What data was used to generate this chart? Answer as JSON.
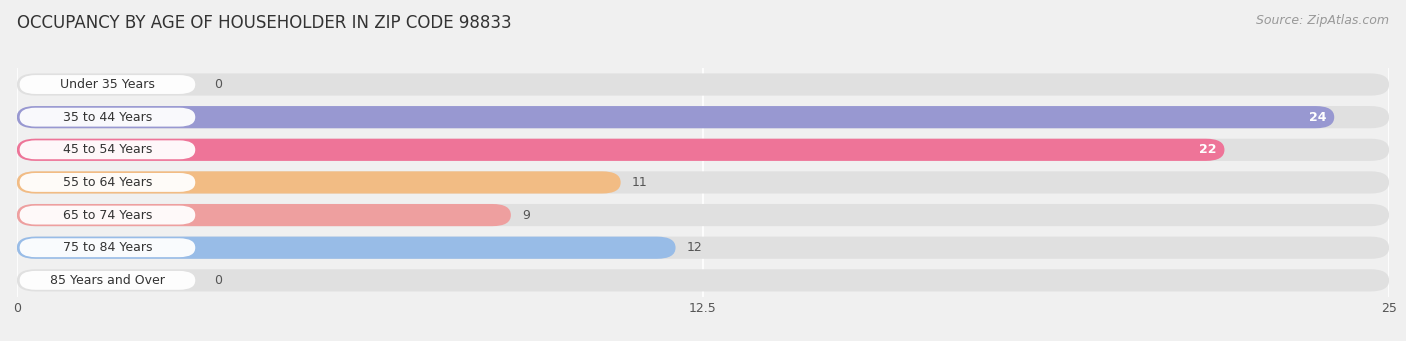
{
  "title": "OCCUPANCY BY AGE OF HOUSEHOLDER IN ZIP CODE 98833",
  "source": "Source: ZipAtlas.com",
  "categories": [
    "Under 35 Years",
    "35 to 44 Years",
    "45 to 54 Years",
    "55 to 64 Years",
    "65 to 74 Years",
    "75 to 84 Years",
    "85 Years and Over"
  ],
  "values": [
    0,
    24,
    22,
    11,
    9,
    12,
    0
  ],
  "bar_colors": [
    "#6ecfcf",
    "#9090d0",
    "#f06890",
    "#f5b87a",
    "#f09898",
    "#90b8e8",
    "#c8a8d8"
  ],
  "xlim": [
    0,
    25
  ],
  "xticks": [
    0,
    12.5,
    25
  ],
  "bg_color": "#f0f0f0",
  "bar_bg_color": "#e0e0e0",
  "title_fontsize": 12,
  "source_fontsize": 9,
  "label_fontsize": 9,
  "value_fontsize": 9,
  "bar_height": 0.68
}
